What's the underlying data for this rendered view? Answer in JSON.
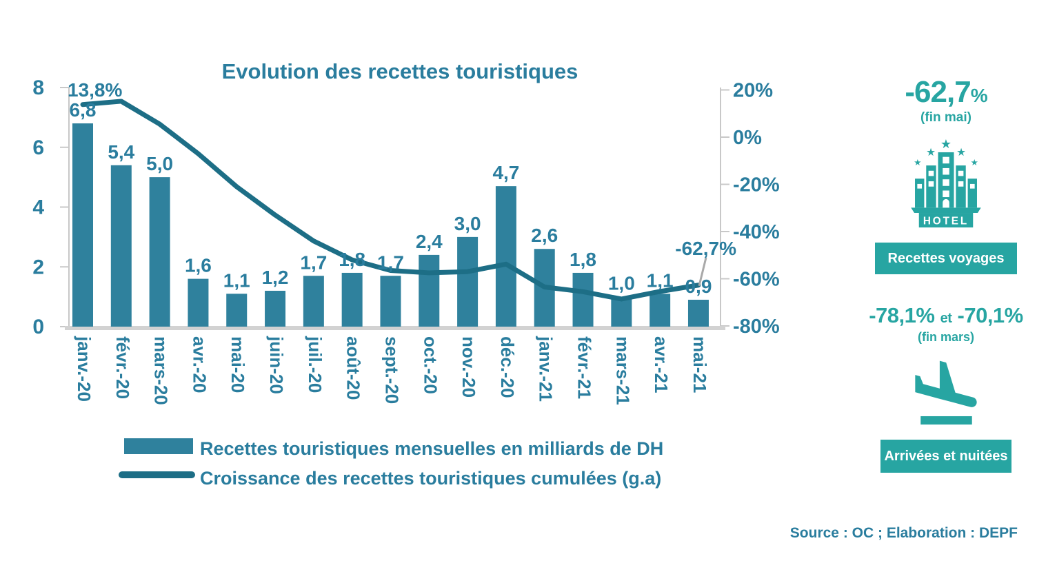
{
  "title": "Evolution des recettes touristiques",
  "source_note": "Source : OC ;  Elaboration : DEPF",
  "colors": {
    "chart_text": "#2a7d9e",
    "bar": "#2f819d",
    "line": "#1d6e86",
    "panel_teal": "#27a5a2",
    "axis_gray": "#c8c8c8",
    "baseline_gray": "#d2d2d2",
    "leader_gray": "#a9a9a9"
  },
  "chart_data": {
    "type": "combo",
    "categories": [
      "janv.-20",
      "févr.-20",
      "mars-20",
      "avr.-20",
      "mai-20",
      "juin-20",
      "juil.-20",
      "août-20",
      "sept.-20",
      "oct.-20",
      "nov.-20",
      "déc.-20",
      "janv.-21",
      "févr.-21",
      "mars-21",
      "avr.-21",
      "mai-21"
    ],
    "series": [
      {
        "name": "Recettes touristiques mensuelles en milliards de DH",
        "type": "bar",
        "values": [
          6.8,
          5.4,
          5.0,
          1.6,
          1.1,
          1.2,
          1.7,
          1.8,
          1.7,
          2.4,
          3.0,
          4.7,
          2.6,
          1.8,
          1.0,
          1.1,
          0.9
        ],
        "labels": [
          "6,8",
          "5,4",
          "5,0",
          "1,6",
          "1,1",
          "1,2",
          "1,7",
          "1,8",
          "1,7",
          "2,4",
          "3,0",
          "4,7",
          "2,6",
          "1,8",
          "1,0",
          "1,1",
          "0,9"
        ]
      },
      {
        "name": "Croissance des recettes touristiques cumulées (g.a)",
        "type": "line",
        "values_percent": [
          13.8,
          15.2,
          5.5,
          -7,
          -21,
          -33,
          -44,
          -52,
          -56.5,
          -57.5,
          -57,
          -53.8,
          -63.5,
          -65.5,
          -68.6,
          -65.4,
          -62.7
        ],
        "first_point_label": "13,8%",
        "last_point_label": "-62,7%"
      }
    ],
    "left_axis": {
      "ticks": [
        8,
        6,
        4,
        2,
        0
      ],
      "range": [
        0,
        8
      ]
    },
    "right_axis": {
      "tick_labels": [
        "20%",
        "0%",
        "-20%",
        "-40%",
        "-60%",
        "-80%"
      ],
      "range_percent": [
        -80,
        20
      ]
    },
    "legend": [
      {
        "swatch": "bar",
        "label": "Recettes touristiques mensuelles en milliards de DH"
      },
      {
        "swatch": "line",
        "label": "Croissance des recettes touristiques cumulées (g.a)"
      }
    ],
    "grid": false,
    "legend_position": "bottom"
  },
  "side_panel": {
    "stat1": {
      "value": "-62,7",
      "percent_sign": "%",
      "caption": "(fin mai)",
      "icon": "hotel-icon",
      "hotel_label": "HOTEL",
      "button": "Recettes voyages"
    },
    "stat2": {
      "value_a": "-78,1%",
      "connector": "et",
      "value_b": "-70,1%",
      "caption": "(fin mars)",
      "icon": "plane-landing-icon",
      "button": "Arrivées et nuitées"
    }
  }
}
